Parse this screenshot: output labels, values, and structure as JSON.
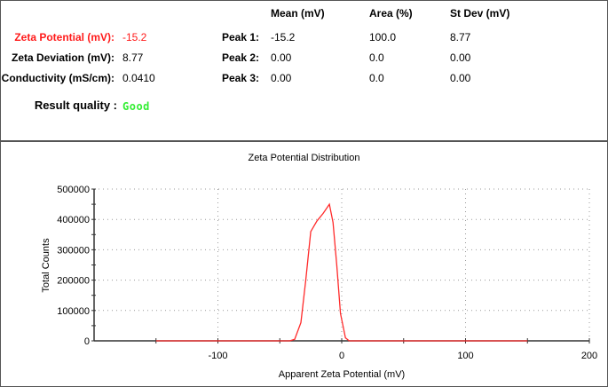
{
  "summary": {
    "zeta_potential": {
      "label": "Zeta Potential (mV):",
      "value": "-15.2"
    },
    "zeta_deviation": {
      "label": "Zeta Deviation (mV):",
      "value": "8.77"
    },
    "conductivity": {
      "label": "Conductivity (mS/cm):",
      "value": "0.0410"
    },
    "result_quality": {
      "label": "Result quality :",
      "value": "Good"
    }
  },
  "peaks_table": {
    "headers": [
      "Mean (mV)",
      "Area (%)",
      "St Dev (mV)"
    ],
    "rows": [
      {
        "label": "Peak 1:",
        "mean": "-15.2",
        "area": "100.0",
        "stdev": "8.77"
      },
      {
        "label": "Peak 2:",
        "mean": "0.00",
        "area": "0.0",
        "stdev": "0.00"
      },
      {
        "label": "Peak 3:",
        "mean": "0.00",
        "area": "0.0",
        "stdev": "0.00"
      }
    ]
  },
  "colors": {
    "highlight": "#ff1a1a",
    "good": "#33ee33",
    "series": "#ff2a2a"
  },
  "chart_data": {
    "type": "line",
    "title": "Zeta Potential Distribution",
    "xlabel": "Apparent Zeta Potential (mV)",
    "ylabel": "Total Counts",
    "xlim": [
      -200,
      200
    ],
    "ylim": [
      0,
      500000
    ],
    "x_ticks": [
      "-100",
      "0",
      "100",
      "200"
    ],
    "y_ticks": [
      "0",
      "100000",
      "200000",
      "300000",
      "400000",
      "500000"
    ],
    "grid": true,
    "legend": "none",
    "series": [
      {
        "name": "Zeta Potential Distribution",
        "x": [
          -150,
          -50,
          -42,
          -38,
          -33,
          -29,
          -25,
          -20,
          -15,
          -10,
          -7,
          -4,
          -1,
          3,
          6,
          10,
          50,
          100,
          150
        ],
        "values": [
          0,
          0,
          0,
          5000,
          60000,
          200000,
          360000,
          395000,
          420000,
          450000,
          390000,
          250000,
          90000,
          10000,
          0,
          0,
          0,
          0,
          0
        ]
      }
    ]
  }
}
